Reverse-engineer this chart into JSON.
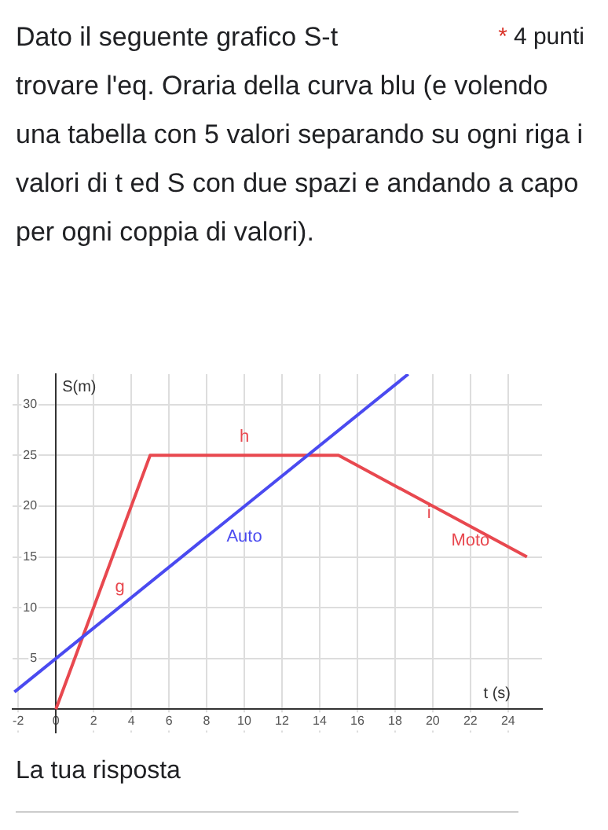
{
  "chart_data": {
    "type": "line",
    "title": "Dato il seguente grafico S-t trovare l'eq. Oraria della curva blu (e volendo una tabella con 5 valori separando su ogni riga i valori di t ed S con due spazi e andando a capo per ogni coppia di valori).",
    "xlabel": "t (s)",
    "ylabel": "S(m)",
    "series": [
      {
        "color": "#4a4af0",
        "x": [
          -2.2,
          18.7
        ],
        "values": [
          1.7,
          33
        ]
      },
      {
        "color": "#e8484f",
        "x": [
          0,
          5,
          15,
          25
        ],
        "values": [
          0,
          25,
          25,
          15
        ]
      }
    ],
    "annotations": [
      "*",
      "4 punti",
      "La tua risposta",
      "h",
      "Auto",
      "g",
      "i",
      "Moto"
    ],
    "xlim": [
      -2.3,
      25.8
    ],
    "ylim": [
      -2.3,
      33
    ],
    "xticks": [
      -2,
      0,
      2,
      4,
      6,
      8,
      10,
      12,
      14,
      16,
      18,
      20,
      22,
      24
    ],
    "yticks": [
      5,
      10,
      15,
      20,
      25,
      30
    ],
    "grid": true,
    "legend": false,
    "marker": "none",
    "line_style": "solid"
  }
}
